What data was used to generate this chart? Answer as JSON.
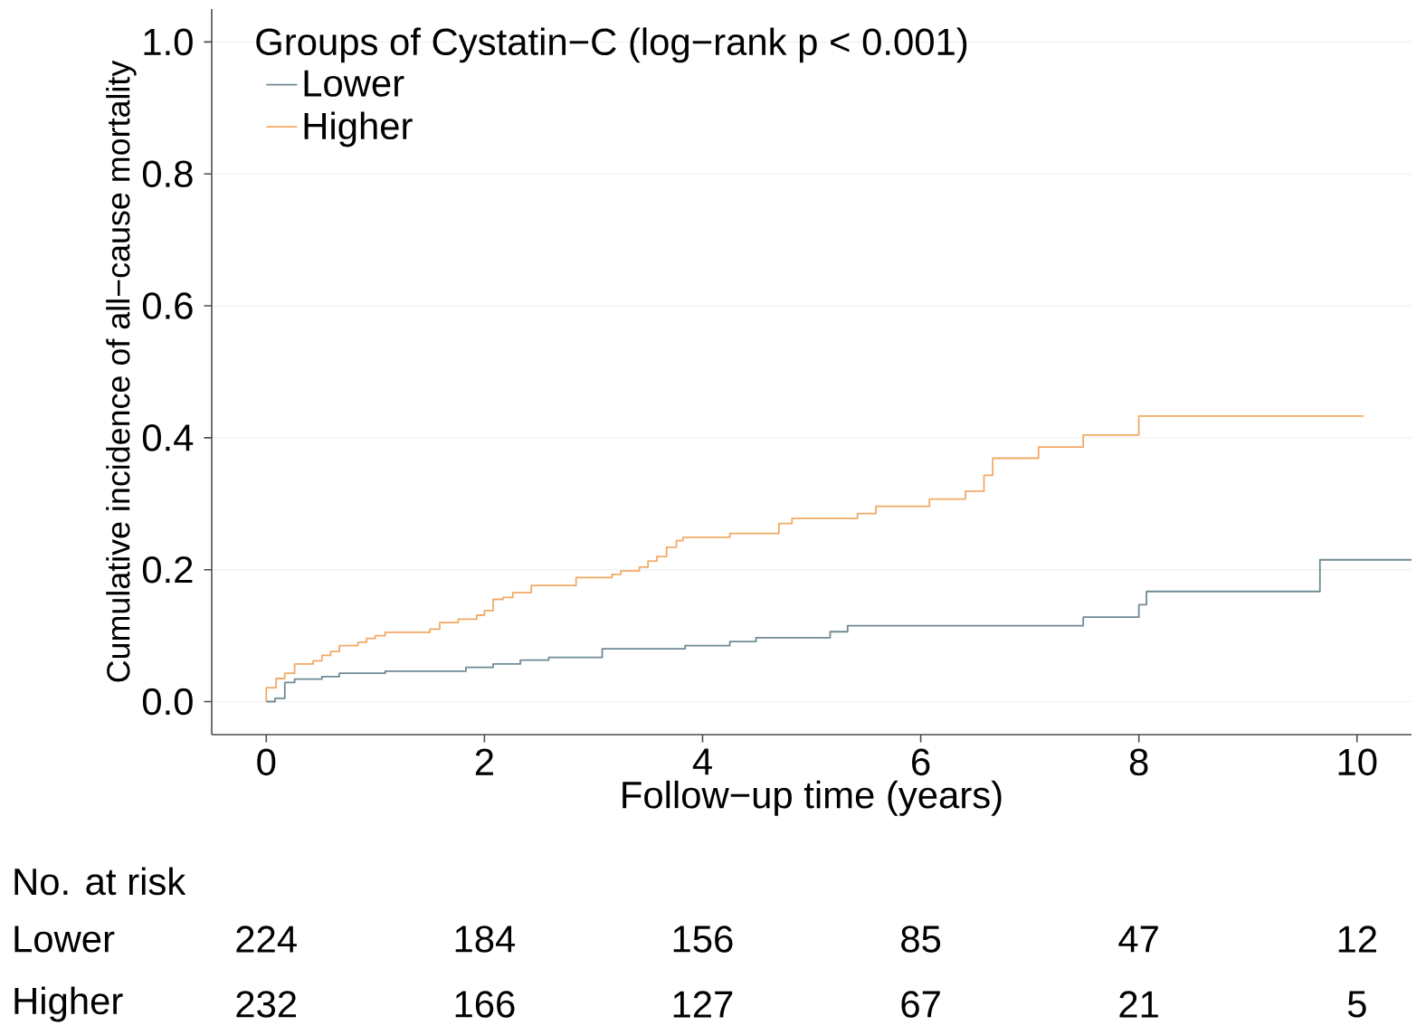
{
  "chart_data": {
    "type": "step",
    "xlabel": "Follow−up time (years)",
    "ylabel": "Cumulative incidence of all−cause mortality",
    "legend_title": "Groups of Cystatin−C (log−rank p < 0.001)",
    "legend": "top left",
    "grid": "y",
    "xlim": [
      -0.5,
      10.5
    ],
    "ylim": [
      -0.05,
      1.05
    ],
    "xticks": [
      0,
      2,
      4,
      6,
      8,
      10
    ],
    "yticks": [
      {
        "value": 0,
        "label": "0.0"
      },
      {
        "value": 0.2,
        "label": "0.2"
      },
      {
        "value": 0.4,
        "label": "0.4"
      },
      {
        "value": 0.6,
        "label": "0.6"
      },
      {
        "value": 0.8,
        "label": "0.8"
      },
      {
        "value": 1,
        "label": "1.0"
      }
    ],
    "series": [
      {
        "name": "Lower",
        "color": "#6f8a94",
        "x": [
          0,
          0.08,
          0.17,
          0.26,
          0.51,
          0.67,
          1.09,
          1.83,
          2.08,
          2.33,
          2.59,
          3.08,
          3.84,
          4.25,
          4.49,
          5.17,
          5.33,
          7.49,
          8.0,
          8.07,
          9.66,
          10.5
        ],
        "values": [
          0,
          0.005,
          0.029,
          0.034,
          0.038,
          0.043,
          0.046,
          0.052,
          0.057,
          0.063,
          0.067,
          0.08,
          0.085,
          0.091,
          0.097,
          0.106,
          0.115,
          0.128,
          0.147,
          0.167,
          0.215,
          0.215
        ]
      },
      {
        "name": "Higher",
        "color": "#f2aa66",
        "x": [
          0,
          0.0,
          0.09,
          0.17,
          0.26,
          0.43,
          0.51,
          0.59,
          0.67,
          0.84,
          0.92,
          1.0,
          1.09,
          1.5,
          1.59,
          1.76,
          1.93,
          2.0,
          2.08,
          2.17,
          2.26,
          2.43,
          2.84,
          3.17,
          3.25,
          3.42,
          3.5,
          3.58,
          3.67,
          3.76,
          3.82,
          4.25,
          4.7,
          4.82,
          5.42,
          5.59,
          6.08,
          6.41,
          6.58,
          6.66,
          7.08,
          7.49,
          8.0,
          10.06
        ],
        "values": [
          0,
          0.021,
          0.035,
          0.043,
          0.057,
          0.062,
          0.07,
          0.076,
          0.085,
          0.09,
          0.096,
          0.1,
          0.105,
          0.11,
          0.12,
          0.125,
          0.131,
          0.138,
          0.155,
          0.158,
          0.165,
          0.176,
          0.188,
          0.193,
          0.198,
          0.204,
          0.213,
          0.22,
          0.234,
          0.244,
          0.249,
          0.255,
          0.27,
          0.278,
          0.285,
          0.296,
          0.307,
          0.319,
          0.343,
          0.369,
          0.386,
          0.404,
          0.433,
          0.433
        ]
      }
    ],
    "annotations": [
      "No. at risk",
      "Lower",
      "224",
      "184",
      "156",
      "85",
      "47",
      "12",
      "Higher",
      "232",
      "166",
      "127",
      "67",
      "21",
      "5"
    ]
  }
}
